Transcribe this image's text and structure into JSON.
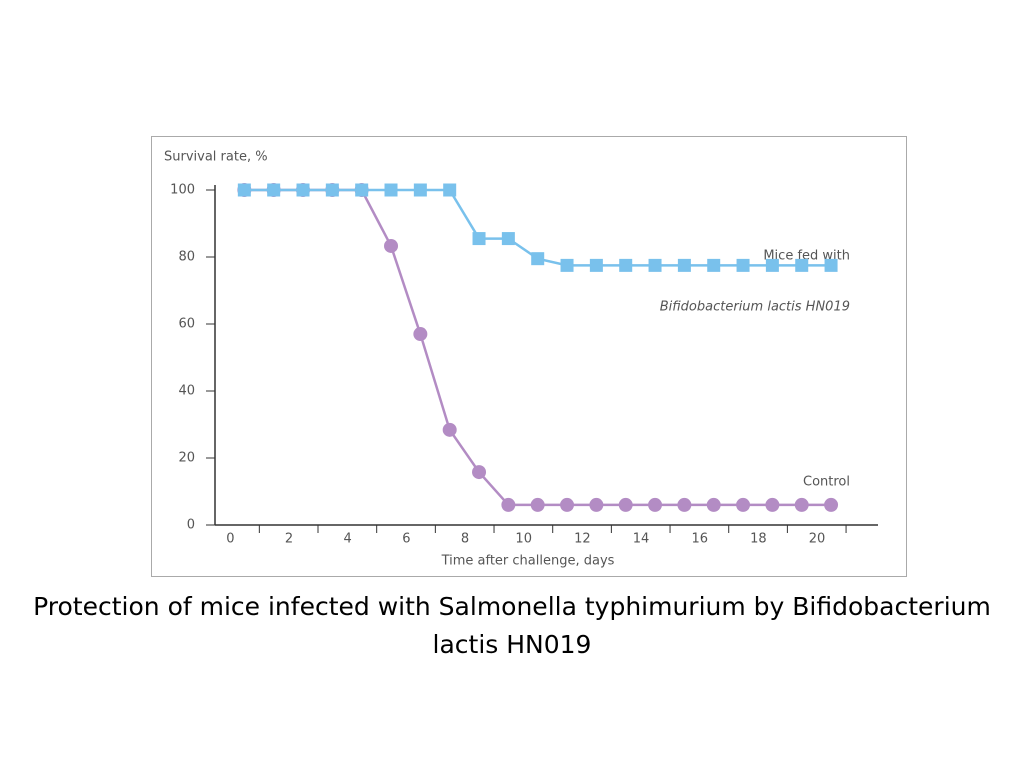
{
  "chart_data": {
    "type": "line",
    "title": "Protection of mice infected with Salmonella typhimurium by Bifidobacterium lactis HN019",
    "ylabel": "Survival rate, %",
    "xlabel": "Time after challenge, days",
    "x": [
      0,
      1,
      2,
      3,
      4,
      5,
      6,
      7,
      8,
      9,
      10,
      11,
      12,
      13,
      14,
      15,
      16,
      17,
      18,
      19,
      20
    ],
    "series": [
      {
        "name": "Control",
        "color": "#b38cc4",
        "marker": "circle",
        "values": [
          100,
          100,
          100,
          100,
          100,
          83.3,
          57,
          28.4,
          15.8,
          6,
          6,
          6,
          6,
          6,
          6,
          6,
          6,
          6,
          6,
          6,
          6
        ]
      },
      {
        "name": "Mice fed with Bifidobacterium lactis HN019",
        "color": "#79c1ec",
        "marker": "square",
        "values": [
          100,
          100,
          100,
          100,
          100,
          100,
          100,
          100,
          85.5,
          85.5,
          79.5,
          77.5,
          77.5,
          77.5,
          77.5,
          77.5,
          77.5,
          77.5,
          77.5,
          77.5,
          77.5
        ]
      }
    ],
    "annotations": [
      "Mice fed with",
      "Bifidobacterium lactis HN019",
      "Control"
    ],
    "xlim": [
      -1,
      21.6
    ],
    "ylim": [
      0,
      100
    ],
    "xticks": [
      0,
      2,
      4,
      6,
      8,
      10,
      12,
      14,
      16,
      18,
      20
    ],
    "yticks": [
      0,
      20,
      40,
      60,
      80,
      100
    ]
  }
}
